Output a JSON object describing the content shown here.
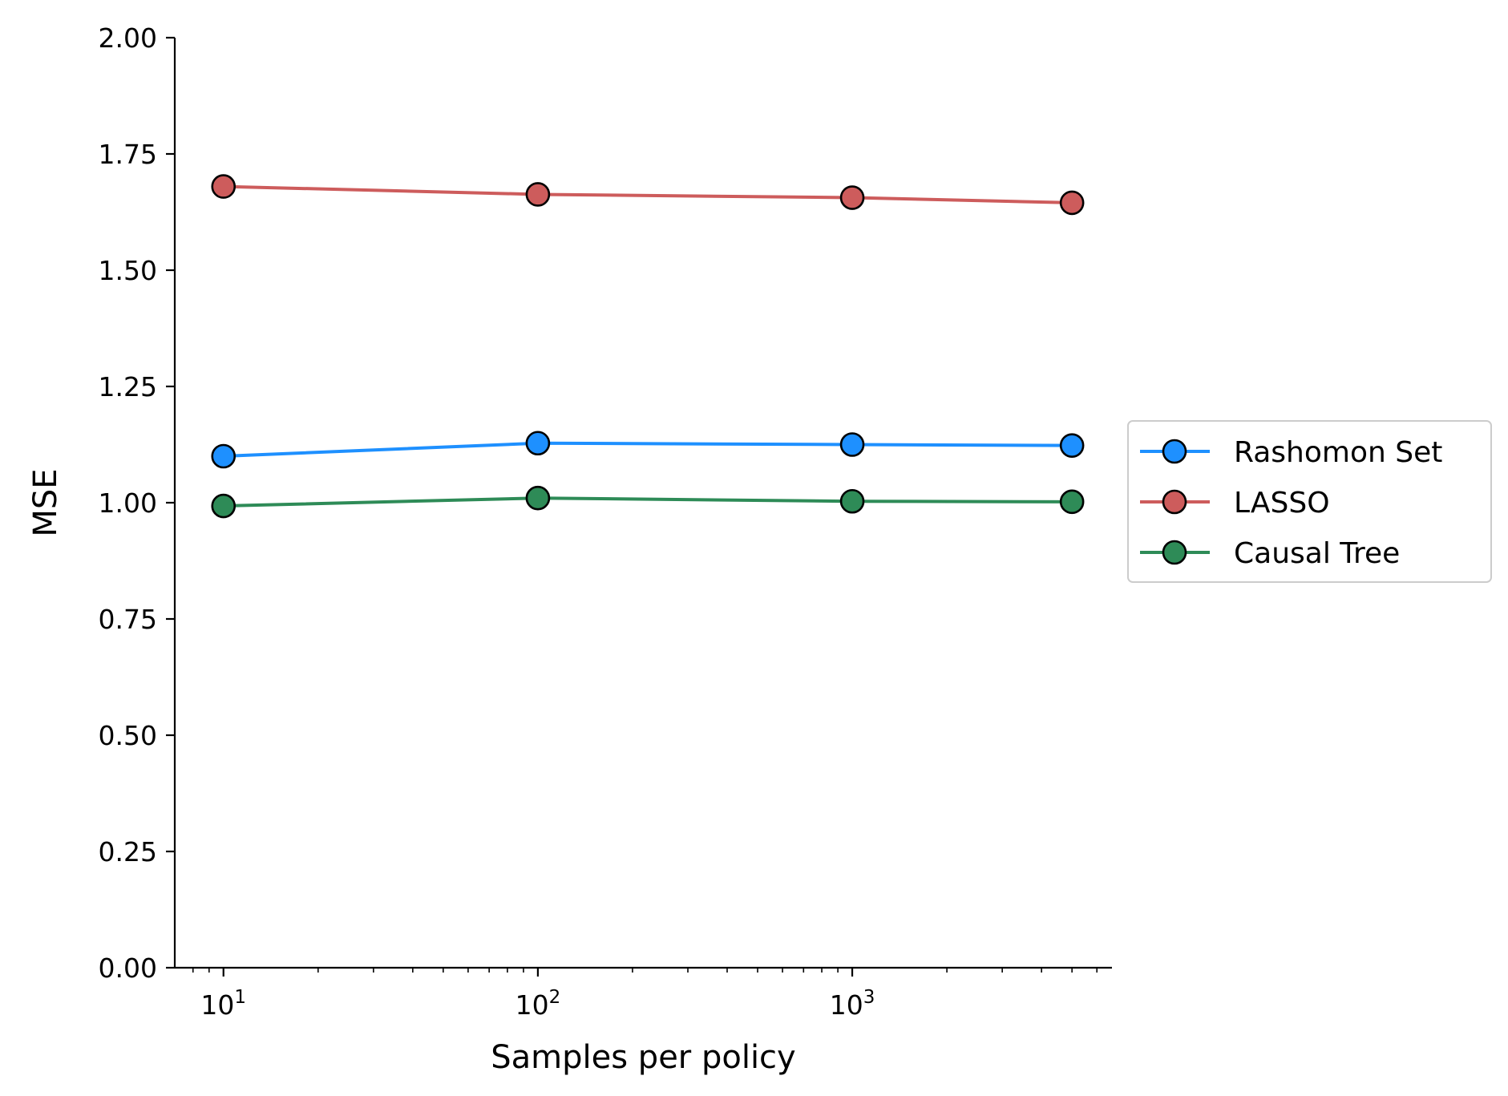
{
  "chart_data": {
    "type": "line",
    "title": "",
    "xlabel": "Samples per policy",
    "ylabel": "MSE",
    "xscale": "log",
    "xlim": [
      7,
      6700
    ],
    "ylim": [
      0,
      2
    ],
    "grid": false,
    "legend_position": "center-right, outside plot",
    "x": [
      10,
      100,
      1000,
      5000
    ],
    "y_ticks": [
      "0.00",
      "0.25",
      "0.50",
      "0.75",
      "1.00",
      "1.25",
      "1.50",
      "1.75",
      "2.00"
    ],
    "x_ticks": [
      {
        "value": 10,
        "base": "10",
        "exp": "1"
      },
      {
        "value": 100,
        "base": "10",
        "exp": "2"
      },
      {
        "value": 1000,
        "base": "10",
        "exp": "3"
      }
    ],
    "series": [
      {
        "name": "Rashomon Set",
        "color": "#1e90ff",
        "values": [
          1.1,
          1.128,
          1.125,
          1.123
        ]
      },
      {
        "name": "LASSO",
        "color": "#cd5c5c",
        "values": [
          1.68,
          1.663,
          1.656,
          1.645
        ]
      },
      {
        "name": "Causal Tree",
        "color": "#2e8b57",
        "values": [
          0.993,
          1.01,
          1.003,
          1.002
        ]
      }
    ]
  }
}
